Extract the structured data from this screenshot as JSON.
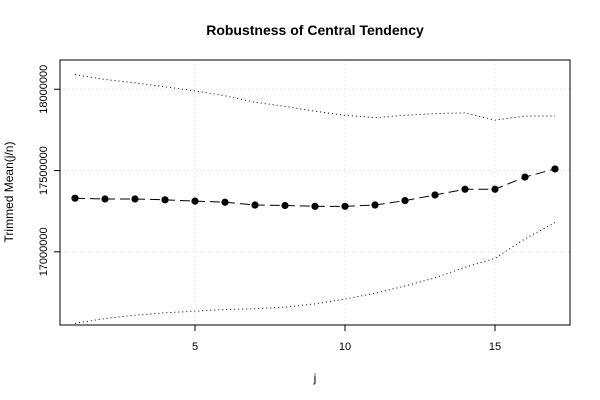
{
  "chart_data": {
    "type": "line",
    "title": "Robustness of Central Tendency",
    "xlabel": "j",
    "ylabel": "Trimmed Mean(j/n)",
    "xlim": [
      0.5,
      17.5
    ],
    "ylim": [
      16550000,
      18180000
    ],
    "xticks": [
      5,
      10,
      15
    ],
    "yticks": [
      17000000,
      17500000,
      18000000
    ],
    "x": [
      1,
      2,
      3,
      4,
      5,
      6,
      7,
      8,
      9,
      10,
      11,
      12,
      13,
      14,
      15,
      16,
      17
    ],
    "series": [
      {
        "role": "mean",
        "values": [
          17330000,
          17325000,
          17325000,
          17320000,
          17312000,
          17305000,
          17288000,
          17285000,
          17280000,
          17280000,
          17288000,
          17315000,
          17350000,
          17385000,
          17385000,
          17460000,
          17510000
        ],
        "color": "#000000"
      },
      {
        "role": "upper",
        "values": [
          18090000,
          18060000,
          18040000,
          18015000,
          17990000,
          17960000,
          17920000,
          17895000,
          17865000,
          17840000,
          17825000,
          17840000,
          17850000,
          17855000,
          17810000,
          17835000,
          17835000
        ],
        "color": "#000000"
      },
      {
        "role": "lower",
        "values": [
          16560000,
          16590000,
          16610000,
          16625000,
          16635000,
          16645000,
          16650000,
          16660000,
          16680000,
          16710000,
          16745000,
          16790000,
          16840000,
          16905000,
          16960000,
          17080000,
          17180000
        ],
        "color": "#000000"
      }
    ],
    "grid": true
  }
}
